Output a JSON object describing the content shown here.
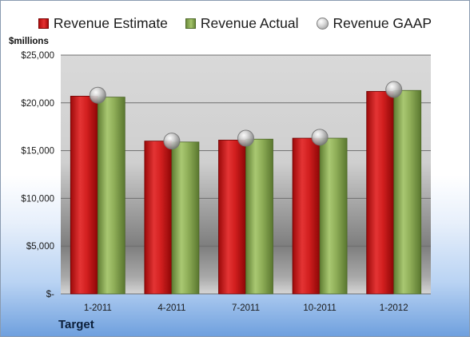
{
  "chart_data": {
    "type": "bar",
    "categories": [
      "1-2011",
      "4-2011",
      "7-2011",
      "10-2011",
      "1-2012"
    ],
    "series": [
      {
        "name": "Revenue Estimate",
        "values": [
          20700,
          16000,
          16100,
          16300,
          21200
        ],
        "color": "#d42020"
      },
      {
        "name": "Revenue Actual",
        "values": [
          20600,
          15900,
          16200,
          16300,
          21300
        ],
        "color": "#8fb05a"
      }
    ],
    "markers": {
      "name": "Revenue GAAP",
      "values": [
        20800,
        16000,
        16300,
        16400,
        21400
      ]
    },
    "ylabel": "$millions",
    "ylim": [
      0,
      25000
    ],
    "yticks": [
      "$-",
      "$5,000",
      "$10,000",
      "$15,000",
      "$20,000",
      "$25,000"
    ],
    "ytick_values": [
      0,
      5000,
      10000,
      15000,
      20000,
      25000
    ],
    "grid": true,
    "legend_position": "top",
    "company": "Target"
  }
}
